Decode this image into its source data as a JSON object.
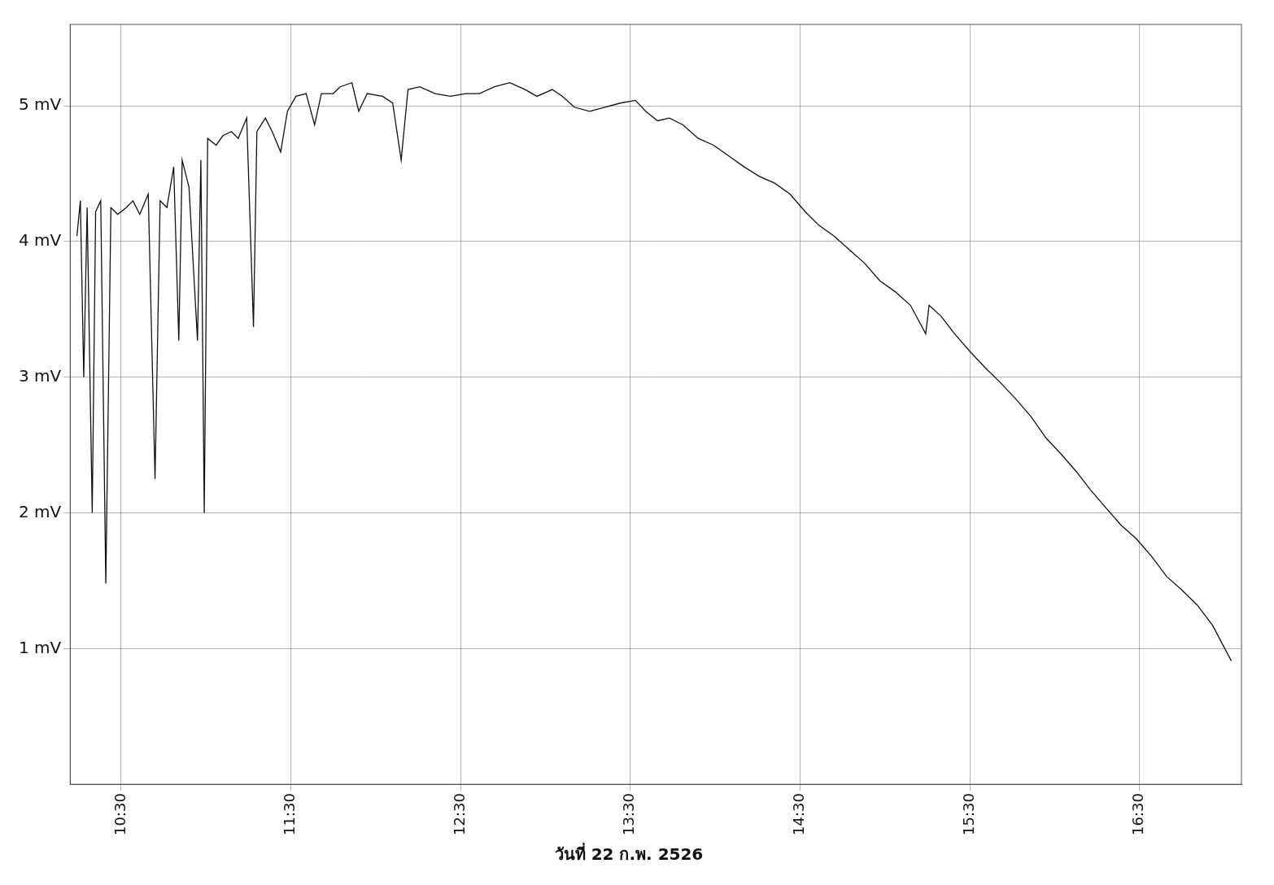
{
  "chart_data": {
    "type": "line",
    "title": "วันที่ 22 ก.พ. 2526",
    "x": [
      10.24,
      10.26,
      10.28,
      10.3,
      10.33,
      10.35,
      10.38,
      10.41,
      10.44,
      10.48,
      10.53,
      10.57,
      10.61,
      10.66,
      10.7,
      10.73,
      10.77,
      10.81,
      10.84,
      10.86,
      10.9,
      10.95,
      10.97,
      10.99,
      11.01,
      11.06,
      11.1,
      11.15,
      11.19,
      11.24,
      11.28,
      11.3,
      11.35,
      11.39,
      11.44,
      11.48,
      11.53,
      11.59,
      11.64,
      11.68,
      11.75,
      11.79,
      11.86,
      11.9,
      11.95,
      12.04,
      12.1,
      12.15,
      12.19,
      12.26,
      12.35,
      12.44,
      12.53,
      12.61,
      12.7,
      12.79,
      12.88,
      12.95,
      13.04,
      13.1,
      13.17,
      13.26,
      13.35,
      13.44,
      13.53,
      13.59,
      13.66,
      13.73,
      13.81,
      13.9,
      13.99,
      14.08,
      14.17,
      14.26,
      14.35,
      14.44,
      14.53,
      14.61,
      14.7,
      14.79,
      14.88,
      14.97,
      15.06,
      15.15,
      15.24,
      15.26,
      15.33,
      15.41,
      15.5,
      15.59,
      15.68,
      15.77,
      15.86,
      15.95,
      16.04,
      16.13,
      16.21,
      16.3,
      16.39,
      16.48,
      16.57,
      16.66,
      16.75,
      16.84,
      16.93,
      17.04
    ],
    "series": [
      {
        "color": "#111111",
        "values": [
          4.04,
          4.3,
          3.0,
          4.25,
          2.0,
          4.22,
          4.3,
          1.48,
          4.25,
          4.2,
          4.25,
          4.3,
          4.2,
          4.35,
          2.25,
          4.3,
          4.25,
          4.55,
          3.27,
          4.6,
          4.4,
          3.27,
          4.6,
          2.0,
          4.76,
          4.71,
          4.78,
          4.81,
          4.76,
          4.91,
          3.37,
          4.81,
          4.91,
          4.81,
          4.66,
          4.96,
          5.07,
          5.09,
          4.86,
          5.09,
          5.09,
          5.14,
          5.17,
          4.96,
          5.09,
          5.07,
          5.02,
          4.6,
          5.12,
          5.14,
          5.09,
          5.07,
          5.09,
          5.09,
          5.14,
          5.17,
          5.12,
          5.07,
          5.12,
          5.07,
          4.99,
          4.96,
          4.99,
          5.02,
          5.04,
          4.96,
          4.89,
          4.91,
          4.86,
          4.76,
          4.71,
          4.63,
          4.55,
          4.48,
          4.43,
          4.35,
          4.22,
          4.12,
          4.04,
          3.94,
          3.84,
          3.71,
          3.63,
          3.53,
          3.32,
          3.53,
          3.45,
          3.32,
          3.19,
          3.07,
          2.96,
          2.84,
          2.71,
          2.55,
          2.43,
          2.3,
          2.17,
          2.04,
          1.91,
          1.81,
          1.68,
          1.53,
          1.43,
          1.32,
          1.17,
          0.91
        ]
      }
    ],
    "xlim": [
      10.2,
      17.1
    ],
    "xticks": [
      {
        "value": 10.5,
        "label": "10:30"
      },
      {
        "value": 11.5,
        "label": "11:30"
      },
      {
        "value": 12.5,
        "label": "12:30"
      },
      {
        "value": 13.5,
        "label": "13:30"
      },
      {
        "value": 14.5,
        "label": "14:30"
      },
      {
        "value": 15.5,
        "label": "15:30"
      },
      {
        "value": 16.5,
        "label": "16:30"
      }
    ],
    "ylim": [
      0,
      5.6
    ],
    "yticks": [
      {
        "value": 1,
        "label": "1 mV"
      },
      {
        "value": 2,
        "label": "2 mV"
      },
      {
        "value": 3,
        "label": "3 mV"
      },
      {
        "value": 4,
        "label": "4 mV"
      },
      {
        "value": 5,
        "label": "5 mV"
      }
    ],
    "grid": true
  }
}
